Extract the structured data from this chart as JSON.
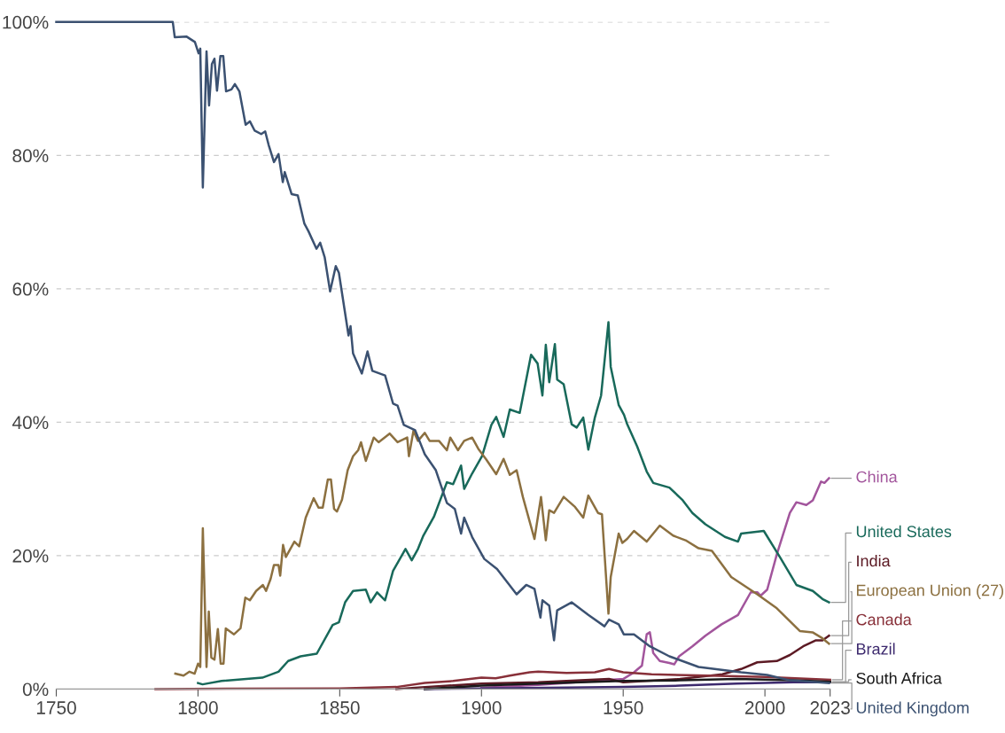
{
  "chart_data": {
    "type": "line",
    "series": [
      {
        "name": "China",
        "color": "#a2559c",
        "x": [
          1900,
          1920,
          1940,
          1950,
          1953.8,
          1956.6,
          1958.3,
          1959.4,
          1960.6,
          1962.9,
          1966.3,
          1968,
          1969.7,
          1974.4,
          1979,
          1984.7,
          1990.5,
          1995,
          1997.3,
          1998.5,
          2000.8,
          2004.2,
          2008.8,
          2011.1,
          2014.6,
          2016.9,
          2019.8,
          2021,
          2022.6
        ],
        "values": [
          0.2,
          0.6,
          1.2,
          1.5,
          2.5,
          3.5,
          8.2,
          8.5,
          5.4,
          4.2,
          3.9,
          3.7,
          4.9,
          6.4,
          8,
          9.7,
          11.1,
          14.5,
          14.5,
          14,
          14.9,
          20.2,
          26.4,
          28,
          27.6,
          28.3,
          31.1,
          30.9,
          31.6
        ]
      },
      {
        "name": "United States",
        "color": "#18695a",
        "x": [
          1800,
          1801.6,
          1808.3,
          1822.7,
          1828.4,
          1831.8,
          1836.2,
          1841.9,
          1847.5,
          1849.7,
          1851.9,
          1854.7,
          1859.2,
          1860.9,
          1863.2,
          1866,
          1868.8,
          1873.2,
          1875.4,
          1877.6,
          1879.5,
          1883.2,
          1887.8,
          1890,
          1892.8,
          1893.9,
          1896.7,
          1900.2,
          1903.5,
          1905.2,
          1907.8,
          1910,
          1913.5,
          1917.5,
          1919.8,
          1921.5,
          1922.7,
          1923.9,
          1925.9,
          1926.7,
          1929,
          1931.8,
          1933.6,
          1935.9,
          1937.7,
          1940,
          1942.2,
          1944.8,
          1945.6,
          1948.4,
          1950.3,
          1951.4,
          1954.9,
          1958.3,
          1960.6,
          1966.3,
          1971,
          1974.4,
          1979,
          1985.9,
          1990.5,
          1991.6,
          1999.6,
          2005.4,
          2011.1,
          2016.9,
          2020.3,
          2022.6
        ],
        "values": [
          0.9,
          0.7,
          1.2,
          1.7,
          2.6,
          4.2,
          4.9,
          5.3,
          9.6,
          10,
          13,
          14.7,
          14.9,
          13,
          14.5,
          13.3,
          17.7,
          21,
          19.3,
          21,
          23,
          25.8,
          31,
          30.7,
          33.5,
          30,
          32.3,
          34.9,
          39.6,
          40.8,
          37.8,
          41.9,
          41.4,
          50.1,
          48.8,
          44,
          51.6,
          46,
          51.7,
          46.4,
          45.7,
          39.7,
          39.2,
          40.7,
          35.9,
          40.7,
          44,
          55,
          48.3,
          42.6,
          41.1,
          39.7,
          36.4,
          32.6,
          30.9,
          30.2,
          28.3,
          26.4,
          24.7,
          22.8,
          22.1,
          23.3,
          23.7,
          19.7,
          15.6,
          14.7,
          13.5,
          13
        ]
      },
      {
        "name": "India",
        "color": "#5c1a24",
        "x": [
          1870,
          1880,
          1900,
          1920,
          1945,
          1950,
          1970,
          1985,
          1991.6,
          1997.3,
          2004.2,
          2008.8,
          2013.5,
          2018,
          2020.3,
          2022.6
        ],
        "values": [
          0,
          0.3,
          0.8,
          1,
          1.5,
          1,
          1.5,
          2.2,
          3,
          4,
          4.2,
          5.1,
          6.4,
          7.3,
          7.3,
          8
        ]
      },
      {
        "name": "European Union (27)",
        "color": "#8c7040",
        "x": [
          1792,
          1794.9,
          1797,
          1798.8,
          1800,
          1800.8,
          1801.7,
          1803,
          1803.8,
          1804.7,
          1805.8,
          1807,
          1808,
          1809,
          1809.8,
          1812.7,
          1815,
          1816.7,
          1818.3,
          1820.5,
          1822.9,
          1824,
          1825.6,
          1826.8,
          1828.4,
          1829,
          1830,
          1831,
          1834,
          1835.7,
          1838,
          1840.8,
          1842.5,
          1844,
          1845.8,
          1846.9,
          1848,
          1849,
          1850.8,
          1852.8,
          1854.7,
          1856.5,
          1857.5,
          1859.2,
          1862,
          1863.7,
          1867.6,
          1870.4,
          1873.8,
          1874.4,
          1876,
          1877.6,
          1880,
          1881.7,
          1885,
          1887.8,
          1889,
          1891.7,
          1893.9,
          1896.7,
          1898.9,
          1901.7,
          1905.2,
          1907.8,
          1910,
          1912.4,
          1914.6,
          1918.7,
          1921,
          1922.7,
          1923.9,
          1925.6,
          1929,
          1933,
          1935.9,
          1937.7,
          1941.1,
          1942.5,
          1944.8,
          1945.6,
          1948.4,
          1949.7,
          1951.4,
          1953.8,
          1958.3,
          1962.9,
          1967.6,
          1972,
          1976.6,
          1981.3,
          1988.1,
          1997.3,
          2004.2,
          2012.3,
          2016.8,
          2020.3,
          2022.6
        ],
        "values": [
          2.3,
          2,
          2.6,
          2.3,
          3.8,
          3.3,
          24.1,
          3.3,
          11.6,
          4.7,
          4.4,
          9,
          3.8,
          3.8,
          9.1,
          8.2,
          9.1,
          13.7,
          13.3,
          14.7,
          15.6,
          14.7,
          16.5,
          18.6,
          18.6,
          17,
          21.6,
          19.8,
          22.1,
          21.4,
          25.7,
          28.6,
          27.2,
          27.2,
          31.4,
          31.4,
          27,
          26.6,
          28.4,
          32.8,
          34.9,
          35.8,
          37,
          34.2,
          37.7,
          37,
          38.3,
          37,
          37.7,
          34.9,
          38.7,
          37.2,
          38.4,
          37.2,
          37.2,
          35.8,
          37.7,
          35.8,
          37.2,
          37.7,
          36,
          34.4,
          32.2,
          34.5,
          32.1,
          32.8,
          28.8,
          22.5,
          28.8,
          22.3,
          26.8,
          26.4,
          28.8,
          27.3,
          25.7,
          29,
          26.4,
          26.2,
          11.3,
          16.8,
          23.3,
          21.9,
          22.5,
          23.7,
          22.1,
          24.5,
          23,
          22.3,
          21.1,
          20.7,
          16.8,
          14.2,
          12.1,
          8.7,
          8.5,
          7.6,
          6.8
        ]
      },
      {
        "name": "Canada",
        "color": "#883039",
        "x": [
          1785,
          1850,
          1870,
          1880,
          1890,
          1900,
          1905,
          1910,
          1917,
          1920,
          1930,
          1940,
          1945,
          1950,
          1960,
          1980,
          2000,
          2023
        ],
        "values": [
          0,
          0.1,
          0.3,
          0.9,
          1.2,
          1.7,
          1.6,
          2,
          2.5,
          2.6,
          2.4,
          2.5,
          3,
          2.5,
          2.2,
          2,
          1.8,
          1.4
        ]
      },
      {
        "name": "Brazil",
        "color": "#3d2a6e",
        "x": [
          1880,
          1900,
          1930,
          1950,
          1970,
          1990,
          2010,
          2023
        ],
        "values": [
          0,
          0.1,
          0.2,
          0.3,
          0.5,
          0.8,
          1,
          1
        ]
      },
      {
        "name": "South Africa",
        "color": "#1a1a1a",
        "x": [
          1880,
          1900,
          1920,
          1950,
          1970,
          1990,
          2010,
          2023
        ],
        "values": [
          0,
          0.5,
          0.8,
          1.2,
          1.3,
          1.5,
          1.3,
          1.1
        ]
      },
      {
        "name": "United Kingdom",
        "color": "#3b5171",
        "x": [
          1750,
          1791.1,
          1791.8,
          1796,
          1798.9,
          1800.2,
          1800.8,
          1801.7,
          1803,
          1803.9,
          1804.9,
          1805.8,
          1806.7,
          1807.9,
          1808.9,
          1809.9,
          1811.8,
          1813,
          1814.6,
          1816.8,
          1818.3,
          1820,
          1822.3,
          1823.7,
          1824.9,
          1826.8,
          1828.4,
          1829.9,
          1830.6,
          1833,
          1835.2,
          1837.5,
          1839,
          1841.8,
          1843.1,
          1844.7,
          1846.6,
          1848.6,
          1849.7,
          1853.1,
          1853.8,
          1854.7,
          1857.8,
          1859.8,
          1861.5,
          1866,
          1868.8,
          1870.4,
          1872.6,
          1876.6,
          1880,
          1883.9,
          1887.8,
          1890.6,
          1892.8,
          1893.9,
          1896.7,
          1901,
          1905.5,
          1912.4,
          1915.8,
          1918.7,
          1920.8,
          1921.5,
          1923.9,
          1925.6,
          1926.7,
          1931.8,
          1937.7,
          1943.4,
          1945,
          1948.4,
          1950.2,
          1953.8,
          1959.4,
          1966.3,
          1976.6,
          1991.6,
          2000.8,
          2008.8,
          2022.6
        ],
        "values": [
          100,
          100,
          97.7,
          97.8,
          97,
          95.3,
          96,
          75.2,
          95.6,
          87.5,
          93.7,
          94.5,
          89.7,
          94.9,
          94.9,
          89.6,
          89.9,
          90.7,
          89.6,
          84.6,
          85.1,
          83.7,
          83.2,
          83.6,
          81.6,
          79,
          80.2,
          76,
          77.5,
          74.2,
          74,
          69.8,
          68.6,
          66,
          66.9,
          64.7,
          59.6,
          63.4,
          62.4,
          53,
          54.4,
          50.3,
          47.3,
          50.6,
          47.7,
          47,
          42.8,
          42.5,
          39.6,
          38.8,
          35.2,
          32.8,
          27.9,
          27,
          23.3,
          25.7,
          22.8,
          19.5,
          18,
          14.2,
          15.6,
          15,
          10.7,
          13.3,
          12.5,
          7.3,
          11.8,
          13,
          11.1,
          9.4,
          10.4,
          9.7,
          8.2,
          8.2,
          6.4,
          4.9,
          3.3,
          2.5,
          2.1,
          1.3,
          0.9
        ]
      }
    ],
    "xlim": [
      1750,
      2023
    ],
    "xticks": [
      1750,
      1800,
      1850,
      1900,
      1950,
      2000,
      2023
    ],
    "ylim": [
      0,
      100
    ],
    "yticks": [
      {
        "value": 0,
        "label": "0%"
      },
      {
        "value": 20,
        "label": "20%"
      },
      {
        "value": 40,
        "label": "40%"
      },
      {
        "value": 60,
        "label": "60%"
      },
      {
        "value": 80,
        "label": "80%"
      },
      {
        "value": 100,
        "label": "100%"
      }
    ],
    "grid": "y",
    "legend": false,
    "marker": "none",
    "line_style": "solid"
  }
}
